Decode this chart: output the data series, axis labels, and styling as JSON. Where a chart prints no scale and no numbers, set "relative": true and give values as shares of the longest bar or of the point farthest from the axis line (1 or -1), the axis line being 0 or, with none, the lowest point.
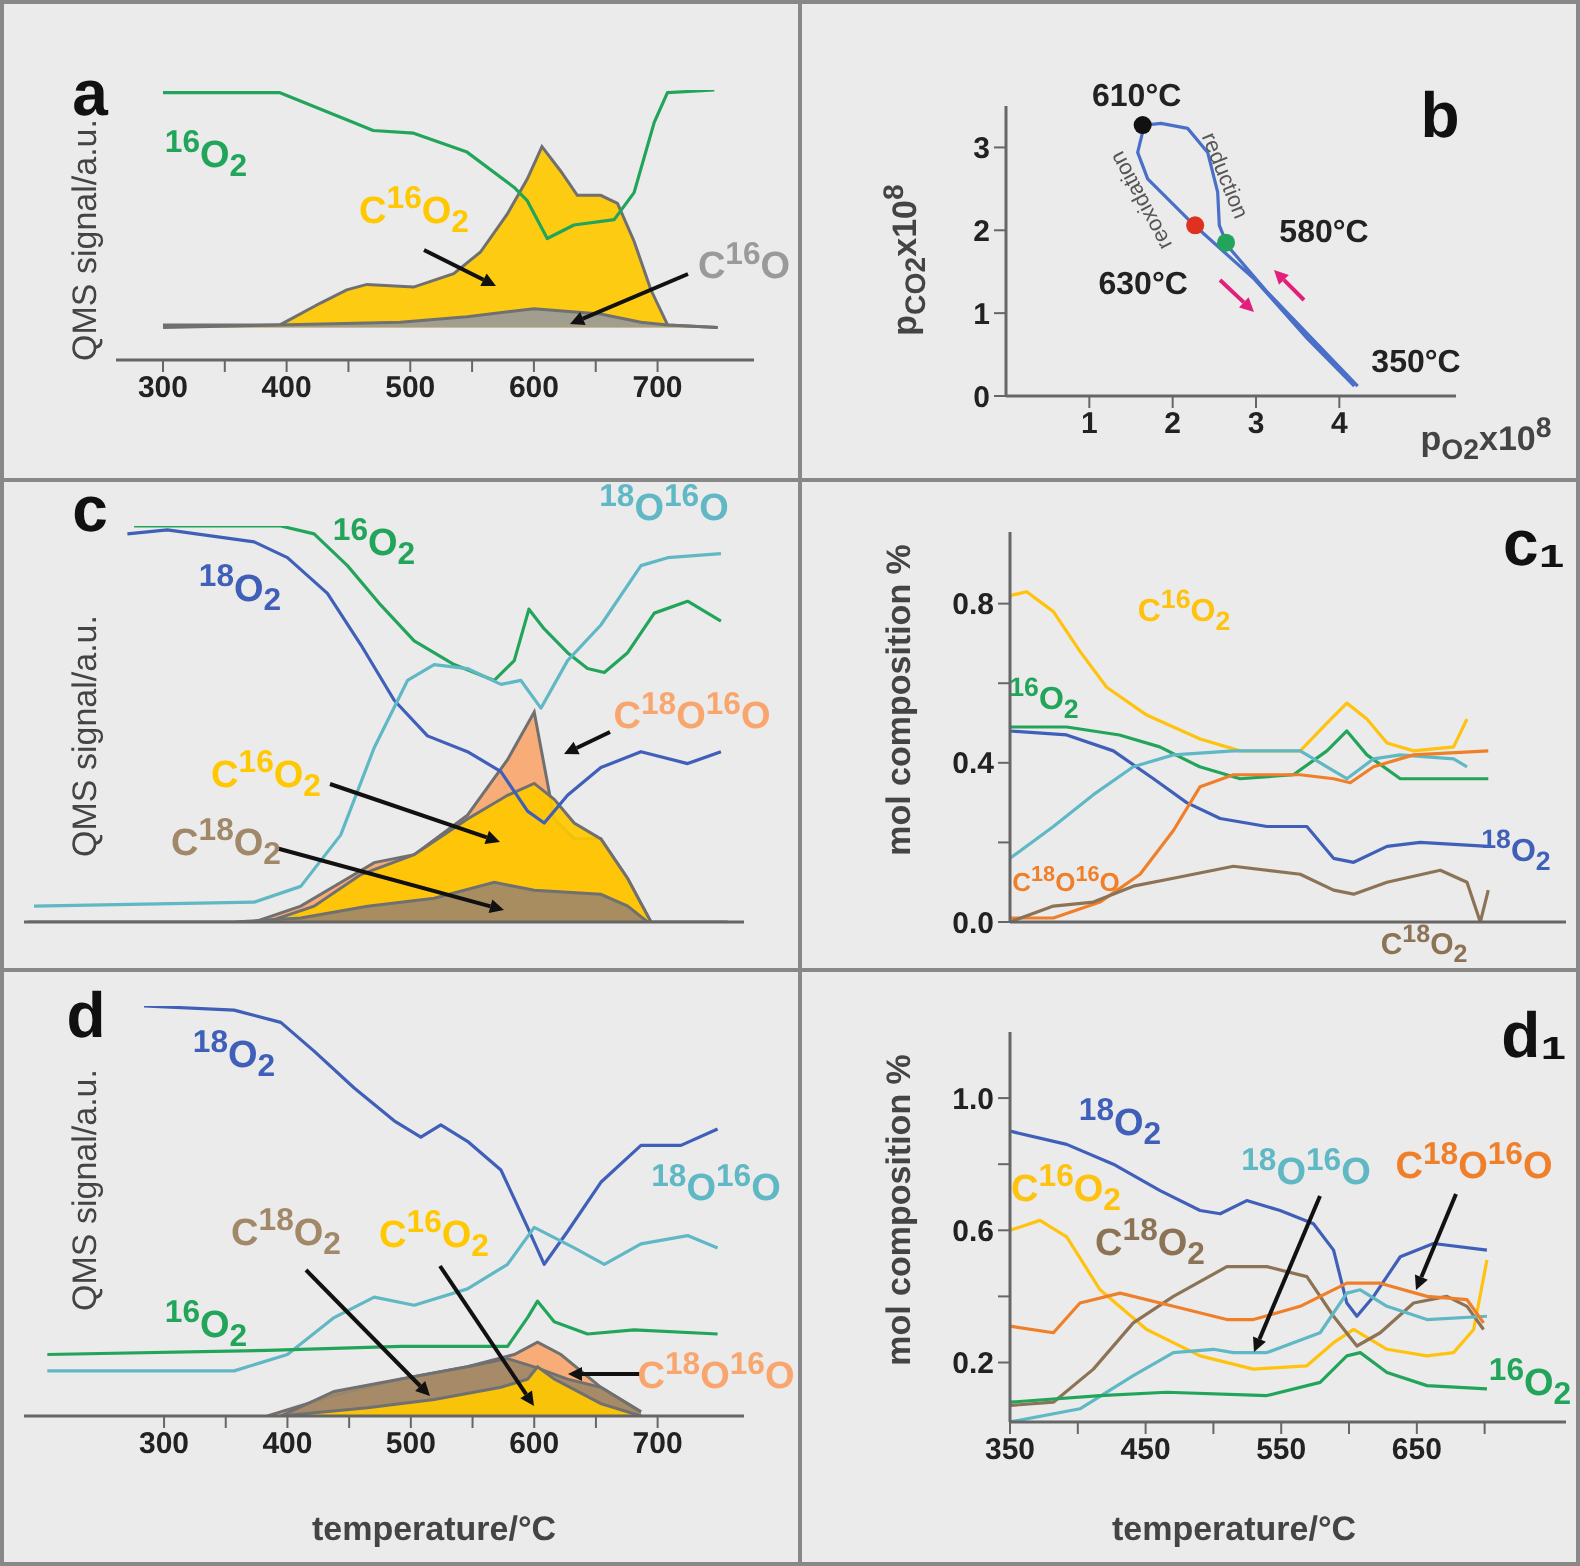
{
  "chart_data": [
    {
      "type": "line",
      "title": "a",
      "ylabel": "QMS signal/a.u.",
      "relative": true,
      "tick_labels": "x",
      "xlim": [
        262,
        778
      ],
      "xticks": [
        300,
        {
          "value": 350,
          "label": null
        },
        400,
        {
          "value": 450,
          "label": null
        },
        500,
        {
          "value": 550,
          "label": null
        },
        600,
        {
          "value": 650,
          "label": null
        },
        700
      ],
      "series": [
        {
          "name": "$^{16}$O$_{2}$",
          "color": "#22a55a",
          "x": [
            300,
            394.6,
            448.6,
            470,
            502.7,
            545.9,
            583.8,
            594.6,
            610.8,
            632.4,
            664.9,
            681,
            697.3,
            708,
            745.9
          ],
          "values": [
            0.99,
            0.99,
            0.89,
            0.85,
            0.84,
            0.77,
            0.64,
            0.59,
            0.45,
            0.5,
            0.52,
            0.62,
            0.88,
            0.99,
            1.0
          ]
        },
        {
          "type": "area",
          "name": "C$^{16}$O$_{2}$",
          "color": "#ffc800",
          "x": [
            300,
            394.6,
            427,
            448.6,
            464.9,
            502.7,
            535.1,
            556.8,
            578.4,
            594.6,
            606.5,
            621.6,
            635.1,
            654,
            667.6,
            681,
            694.6,
            708.1,
            748.6
          ],
          "values": [
            0.13,
            0.13,
            0.21,
            0.26,
            0.28,
            0.27,
            0.32,
            0.4,
            0.54,
            0.67,
            0.79,
            0.7,
            0.61,
            0.61,
            0.58,
            0.44,
            0.26,
            0.13,
            0.12
          ]
        },
        {
          "type": "area",
          "name": "C$^{16}$O",
          "color": "#9a9a9a",
          "x": [
            300,
            491.9,
            546,
            600,
            654,
            686.5,
            708.1,
            748.6
          ],
          "values": [
            0.12,
            0.14,
            0.16,
            0.19,
            0.17,
            0.14,
            0.13,
            0.12
          ]
        }
      ]
    },
    {
      "type": "line",
      "title": "b",
      "xlabel": "p$_{O2}$x10$^{8}$",
      "ylabel": "p$_{CO2}$x10$^{8}$",
      "xlim": [
        0,
        5.4
      ],
      "ylim": [
        0,
        3.5
      ],
      "xticks": [
        1,
        2,
        3,
        4
      ],
      "yticks": [
        0,
        1,
        2,
        3
      ],
      "annotations": [
        {
          "text": "610°C",
          "x": 1.64,
          "y": 3.27
        },
        {
          "text": "580°C",
          "x": 2.64,
          "y": 1.85
        },
        {
          "text": "630°C",
          "x": 2.27,
          "y": 2.06
        },
        {
          "text": "350°C",
          "x": 4.2,
          "y": 0.1
        },
        "reduction",
        "reoxidation"
      ],
      "series": [
        {
          "color": "#4a6fc8",
          "x": [
            4.22,
            3.14,
            2.66,
            2.56,
            2.54,
            2.42,
            2.18,
            1.86,
            1.66,
            1.58,
            1.7,
            2.26,
            2.98,
            3.62,
            4.18
          ],
          "values": [
            0.12,
            1.25,
            1.81,
            2.06,
            2.46,
            2.94,
            3.23,
            3.29,
            3.27,
            2.94,
            2.62,
            2.06,
            1.41,
            0.69,
            0.12
          ]
        },
        {
          "type": "scatter",
          "colors": [
            "#111111",
            "#22a55a",
            "#e03020"
          ],
          "x": [
            1.64,
            2.64,
            2.27
          ],
          "values": [
            3.27,
            1.85,
            2.06
          ]
        }
      ]
    },
    {
      "type": "line",
      "title": "c",
      "ylabel": "QMS signal/a.u.",
      "relative": true,
      "tick_labels": false,
      "xlim": [
        186.5,
        770
      ],
      "series": [
        {
          "name": "$^{16}$O$_{2}$",
          "color": "#22a55a",
          "x": [
            275.7,
            394.6,
            421.6,
            448.6,
            475.7,
            502.7,
            535.1,
            567.6,
            583.8,
            595.7,
            608.1,
            627,
            643.2,
            656.8,
            675.7,
            697.3,
            724.3,
            751.3
          ],
          "values": [
            1.0,
            1.0,
            0.98,
            0.9,
            0.8,
            0.71,
            0.65,
            0.61,
            0.66,
            0.79,
            0.74,
            0.68,
            0.64,
            0.63,
            0.68,
            0.78,
            0.81,
            0.76
          ]
        },
        {
          "name": "$^{18}$O$_{2}$",
          "color": "#3f5fb8",
          "x": [
            270.3,
            302.7,
            373,
            400,
            432.4,
            459.5,
            486.5,
            513.5,
            545.9,
            573,
            594.6,
            608.1,
            627,
            654,
            686.5,
            724.3,
            751.3
          ],
          "values": [
            0.98,
            0.99,
            0.96,
            0.92,
            0.83,
            0.7,
            0.56,
            0.47,
            0.43,
            0.38,
            0.28,
            0.25,
            0.32,
            0.39,
            0.43,
            0.4,
            0.43
          ]
        },
        {
          "name": "$^{18}$O$^{16}$O",
          "color": "#5fb8c4",
          "x": [
            194.6,
            373,
            410.8,
            443.2,
            470.3,
            497.3,
            518.9,
            545.9,
            573,
            589.2,
            605.4,
            627,
            654,
            686.5,
            708.1,
            751.3
          ],
          "values": [
            0.04,
            0.05,
            0.09,
            0.22,
            0.44,
            0.61,
            0.65,
            0.64,
            0.6,
            0.61,
            0.54,
            0.66,
            0.75,
            0.9,
            0.92,
            0.93
          ]
        },
        {
          "type": "area",
          "name": "C$^{18}$O$^{16}$O",
          "color": "#f8a66e",
          "x": [
            373,
            410.8,
            448.6,
            470.3,
            502.7,
            545.9,
            578.4,
            600,
            616.2,
            632.4,
            654,
            675.7,
            694.6
          ],
          "values": [
            0,
            0.04,
            0.11,
            0.15,
            0.17,
            0.27,
            0.41,
            0.53,
            0.26,
            0.21,
            0.21,
            0.11,
            0
          ]
        },
        {
          "type": "area",
          "name": "C$^{16}$O$_{2}$",
          "color": "#ffc800",
          "x": [
            383.8,
            421.6,
            459.5,
            502.7,
            545.9,
            578.4,
            600,
            616.2,
            632.4,
            654,
            675.7,
            694.6
          ],
          "values": [
            0,
            0.04,
            0.12,
            0.17,
            0.26,
            0.32,
            0.35,
            0.31,
            0.25,
            0.21,
            0.11,
            0
          ]
        },
        {
          "type": "area",
          "name": "C$^{18}$O$_{2}$",
          "color": "#a08868",
          "x": [
            190,
            356.8,
            410.8,
            464.9,
            518.9,
            567.6,
            600,
            654,
            675.7,
            691.9,
            756.7
          ],
          "values": [
            0,
            0,
            0.01,
            0.04,
            0.06,
            0.1,
            0.08,
            0.07,
            0.04,
            0,
            0
          ]
        }
      ]
    },
    {
      "type": "line",
      "title": "c₁",
      "ylabel": "mol composition %",
      "tick_labels": "y",
      "xlim": [
        350,
        760
      ],
      "ylim": [
        0,
        0.98
      ],
      "yticks": [
        {
          "value": 0,
          "label": "0.0"
        },
        {
          "value": 0.2,
          "label": null
        },
        0.4,
        {
          "value": 0.6,
          "label": null
        },
        0.8
      ],
      "series": [
        {
          "name": "C$^{16}$O$_{2}$",
          "color": "#ffc20e",
          "x": [
            350,
            362.3,
            382,
            401.6,
            421.3,
            450.8,
            490.2,
            519.7,
            564,
            583.7,
            598.4,
            613.2,
            628,
            647.6,
            677.1,
            687
          ],
          "values": [
            0.82,
            0.83,
            0.78,
            0.68,
            0.59,
            0.52,
            0.46,
            0.43,
            0.43,
            0.5,
            0.55,
            0.51,
            0.45,
            0.43,
            0.44,
            0.51
          ]
        },
        {
          "name": "$^{16}$O$_{2}$",
          "color": "#22a55a",
          "x": [
            350,
            391.8,
            430.7,
            460.4,
            489.9,
            519.7,
            559,
            583.7,
            598.4,
            613.2,
            637.8,
            667.3,
            702.7
          ],
          "values": [
            0.49,
            0.49,
            0.47,
            0.44,
            0.39,
            0.36,
            0.37,
            0.43,
            0.48,
            0.42,
            0.36,
            0.36,
            0.36
          ]
        },
        {
          "name": "$^{18}$O$_{2}$",
          "color": "#3f5fb8",
          "x": [
            350,
            391.8,
            426.2,
            455.8,
            480.3,
            505,
            539.4,
            568.9,
            588.6,
            603.4,
            628,
            652.5,
            702.7
          ],
          "values": [
            0.48,
            0.47,
            0.43,
            0.36,
            0.3,
            0.26,
            0.24,
            0.24,
            0.16,
            0.15,
            0.19,
            0.2,
            0.19
          ]
        },
        {
          "color": "#5fb8c4",
          "x": [
            350,
            382,
            411.5,
            440.9,
            470.5,
            514.8,
            564,
            583.7,
            598.4,
            618.1,
            637.8,
            677.1,
            687
          ],
          "values": [
            0.16,
            0.24,
            0.32,
            0.39,
            0.42,
            0.43,
            0.43,
            0.39,
            0.36,
            0.41,
            0.42,
            0.41,
            0.39
          ]
        },
        {
          "name": "C$^{18}$O$^{16}$O",
          "color": "#f07f2a",
          "x": [
            350,
            382,
            416.4,
            445.9,
            470.5,
            490.2,
            514.8,
            564,
            588.6,
            600.9,
            618.1,
            647.6,
            702.7
          ],
          "values": [
            0.01,
            0.01,
            0.05,
            0.12,
            0.23,
            0.34,
            0.37,
            0.37,
            0.36,
            0.35,
            0.39,
            0.42,
            0.43
          ]
        },
        {
          "name": "C$^{18}$O$_{2}$",
          "color": "#8c7356",
          "x": [
            350,
            382,
            411.5,
            440.9,
            470.5,
            514.8,
            564,
            588.6,
            603.4,
            628,
            667.3,
            687,
            696.8,
            702.7
          ],
          "values": [
            0.0,
            0.04,
            0.05,
            0.09,
            0.11,
            0.14,
            0.12,
            0.08,
            0.07,
            0.1,
            0.13,
            0.1,
            0.0,
            0.08
          ]
        }
      ]
    },
    {
      "type": "line",
      "title": "d",
      "xlabel": "temperature/°C",
      "ylabel": "QMS signal/a.u.",
      "relative": true,
      "tick_labels": "x",
      "xlim": [
        186.5,
        770
      ],
      "xticks": [
        300,
        {
          "value": 350,
          "label": null
        },
        400,
        {
          "value": 450,
          "label": null
        },
        500,
        {
          "value": 550,
          "label": null
        },
        600,
        {
          "value": 650,
          "label": null
        },
        700
      ],
      "series": [
        {
          "name": "$^{18}$O$_{2}$",
          "color": "#3f5fb8",
          "x": [
            283.8,
            356.8,
            394.6,
            421.6,
            454.1,
            486.5,
            508.1,
            524.3,
            545.9,
            573,
            594.6,
            608.1,
            627,
            654,
            686.5,
            718.9,
            748.6
          ],
          "values": [
            1.0,
            0.99,
            0.96,
            0.89,
            0.8,
            0.72,
            0.68,
            0.71,
            0.67,
            0.6,
            0.46,
            0.37,
            0.45,
            0.57,
            0.66,
            0.66,
            0.7
          ]
        },
        {
          "name": "$^{18}$O$^{16}$O",
          "color": "#5fb8c4",
          "x": [
            205.4,
            356.8,
            400,
            437.8,
            470.3,
            502.7,
            545.9,
            578.4,
            600,
            632.4,
            656.8,
            686.5,
            724.3,
            748.6
          ],
          "values": [
            0.11,
            0.11,
            0.15,
            0.24,
            0.29,
            0.27,
            0.31,
            0.37,
            0.46,
            0.41,
            0.37,
            0.42,
            0.44,
            0.41
          ]
        },
        {
          "name": "$^{16}$O$_{2}$",
          "color": "#22a55a",
          "x": [
            205.4,
            383.8,
            491.9,
            578.4,
            594.6,
            602.7,
            616.2,
            643.2,
            681,
            748.6
          ],
          "values": [
            0.15,
            0.16,
            0.17,
            0.17,
            0.24,
            0.28,
            0.23,
            0.2,
            0.21,
            0.2
          ]
        },
        {
          "type": "area",
          "name": "C$^{18}$O$^{16}$O",
          "color": "#f8a66e",
          "x": [
            383.8,
            437.8,
            491.9,
            545.9,
            583.8,
            602.7,
            621.6,
            654,
            686.5
          ],
          "values": [
            0,
            0.05,
            0.09,
            0.12,
            0.15,
            0.18,
            0.15,
            0.07,
            0.01
          ]
        },
        {
          "type": "area",
          "name": "C$^{18}$O$_{2}$",
          "color": "#a08868",
          "x": [
            394.6,
            437.8,
            491.9,
            545.9,
            578.4,
            600,
            627,
            654,
            686.5
          ],
          "values": [
            0,
            0.06,
            0.09,
            0.12,
            0.14,
            0.12,
            0.09,
            0.07,
            0.01
          ]
        },
        {
          "type": "area",
          "name": "C$^{16}$O$_{2}$",
          "color": "#ffc800",
          "x": [
            394.6,
            464.9,
            518.9,
            573,
            594.6,
            602.7,
            616.2,
            654,
            686.5
          ],
          "values": [
            0,
            0.02,
            0.04,
            0.07,
            0.09,
            0.12,
            0.09,
            0.03,
            0
          ]
        }
      ]
    },
    {
      "type": "line",
      "title": "d₁",
      "xlabel": "temperature/°C",
      "ylabel": "mol composition %",
      "xlim": [
        350,
        760
      ],
      "ylim": [
        0.02,
        1.2
      ],
      "xticks": [
        350,
        {
          "value": 400,
          "label": null
        },
        450,
        {
          "value": 500,
          "label": null
        },
        550,
        {
          "value": 600,
          "label": null
        },
        650,
        {
          "value": 700,
          "label": null
        }
      ],
      "yticks": [
        0.2,
        {
          "value": 0.4,
          "label": null
        },
        0.6,
        {
          "value": 0.8,
          "label": null
        },
        {
          "value": 1,
          "label": "1.0"
        }
      ],
      "series": [
        {
          "name": "$^{18}$O$_{2}$",
          "color": "#3f5fb8",
          "x": [
            350,
            391.8,
            426.2,
            460.7,
            490.2,
            505,
            524.6,
            549.2,
            573.8,
            588.6,
            598.4,
            605.8,
            618.1,
            637.8,
            662.3,
            701.7
          ],
          "values": [
            0.9,
            0.86,
            0.8,
            0.72,
            0.66,
            0.65,
            0.69,
            0.66,
            0.62,
            0.54,
            0.38,
            0.34,
            0.4,
            0.52,
            0.56,
            0.54
          ]
        },
        {
          "name": "C$^{16}$O$_{2}$",
          "color": "#ffc20e",
          "x": [
            350,
            372.1,
            391.8,
            416.4,
            450.8,
            490.2,
            529.5,
            568.9,
            588.6,
            603.4,
            628,
            657.5,
            677.1,
            691.9,
            701.7
          ],
          "values": [
            0.6,
            0.63,
            0.58,
            0.42,
            0.3,
            0.22,
            0.18,
            0.19,
            0.26,
            0.3,
            0.24,
            0.22,
            0.23,
            0.3,
            0.51
          ]
        },
        {
          "name": "C$^{18}$O$_{2}$",
          "color": "#8c7356",
          "x": [
            350,
            382,
            411.5,
            440.9,
            470.5,
            509.9,
            539.4,
            568.9,
            588.6,
            605.8,
            623,
            647.6,
            672.2,
            687,
            699.2
          ],
          "values": [
            0.07,
            0.08,
            0.18,
            0.32,
            0.4,
            0.49,
            0.49,
            0.46,
            0.34,
            0.25,
            0.29,
            0.38,
            0.4,
            0.37,
            0.3
          ]
        },
        {
          "name": "$^{18}$O$^{16}$O",
          "color": "#5fb8c4",
          "x": [
            350,
            401.6,
            440.9,
            470.5,
            500,
            514.8,
            539.4,
            578.7,
            598.4,
            608.3,
            628,
            657.5,
            701.7
          ],
          "values": [
            0.02,
            0.06,
            0.16,
            0.23,
            0.24,
            0.23,
            0.23,
            0.29,
            0.41,
            0.42,
            0.37,
            0.33,
            0.34
          ]
        },
        {
          "name": "C$^{18}$O$^{16}$O",
          "color": "#f07f2a",
          "x": [
            350,
            382,
            401.6,
            431.2,
            470.5,
            509.9,
            529.5,
            564,
            598.4,
            623,
            657.5,
            687,
            699.2
          ],
          "values": [
            0.31,
            0.29,
            0.38,
            0.41,
            0.37,
            0.33,
            0.33,
            0.37,
            0.44,
            0.44,
            0.4,
            0.39,
            0.32
          ]
        },
        {
          "name": "$^{16}$O$_{2}$",
          "color": "#22a55a",
          "x": [
            350,
            416.4,
            465.6,
            539.4,
            578.7,
            598.4,
            608.3,
            628,
            657.5,
            701.7
          ],
          "values": [
            0.08,
            0.1,
            0.11,
            0.1,
            0.14,
            0.22,
            0.23,
            0.17,
            0.13,
            0.12
          ]
        }
      ]
    }
  ]
}
